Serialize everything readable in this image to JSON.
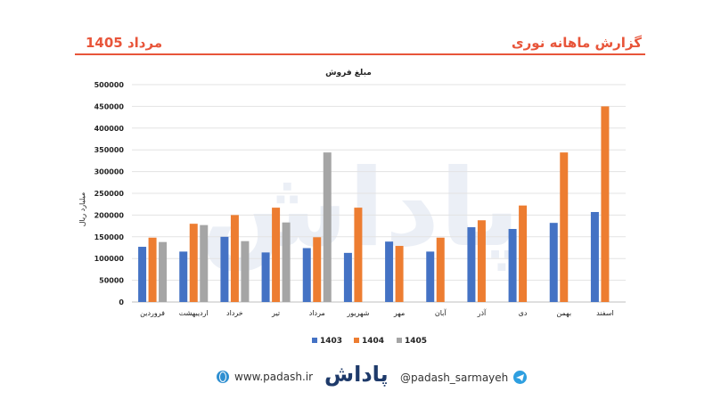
{
  "header": {
    "left_title": "مرداد 1405",
    "right_title": "گزارش ماهانه نوری"
  },
  "watermark": "پاداش",
  "colors": {
    "accent": "#e8553a",
    "s1403": "#4472c4",
    "s1404": "#ed7d31",
    "s1405": "#a5a5a5"
  },
  "chart_data": {
    "type": "bar",
    "title": "مبلغ فروش",
    "xlabel": "",
    "ylabel": "میلیارد ریال",
    "ylim": [
      0,
      500000
    ],
    "yticks": [
      0,
      50000,
      100000,
      150000,
      200000,
      250000,
      300000,
      350000,
      400000,
      450000,
      500000
    ],
    "grid": true,
    "legend_position": "bottom",
    "categories": [
      "فروردین",
      "اردیبهشت",
      "خرداد",
      "تیر",
      "مرداد",
      "شهریور",
      "مهر",
      "آبان",
      "آذر",
      "دی",
      "بهمن",
      "اسفند"
    ],
    "series": [
      {
        "name": "1403",
        "color": "#4472c4",
        "values": [
          127000,
          116000,
          150000,
          114000,
          124000,
          113000,
          139000,
          116000,
          172000,
          168000,
          182000,
          207000
        ]
      },
      {
        "name": "1404",
        "color": "#ed7d31",
        "values": [
          148000,
          180000,
          200000,
          217000,
          149000,
          217000,
          129000,
          148000,
          188000,
          222000,
          344000,
          450000
        ]
      },
      {
        "name": "1405",
        "color": "#a5a5a5",
        "values": [
          138000,
          177000,
          140000,
          183000,
          344000,
          null,
          null,
          null,
          null,
          null,
          null,
          null
        ]
      }
    ]
  },
  "footer": {
    "website": "www.padash.ir",
    "logo_text": "پاداش",
    "telegram": "@padash_sarmayeh"
  }
}
